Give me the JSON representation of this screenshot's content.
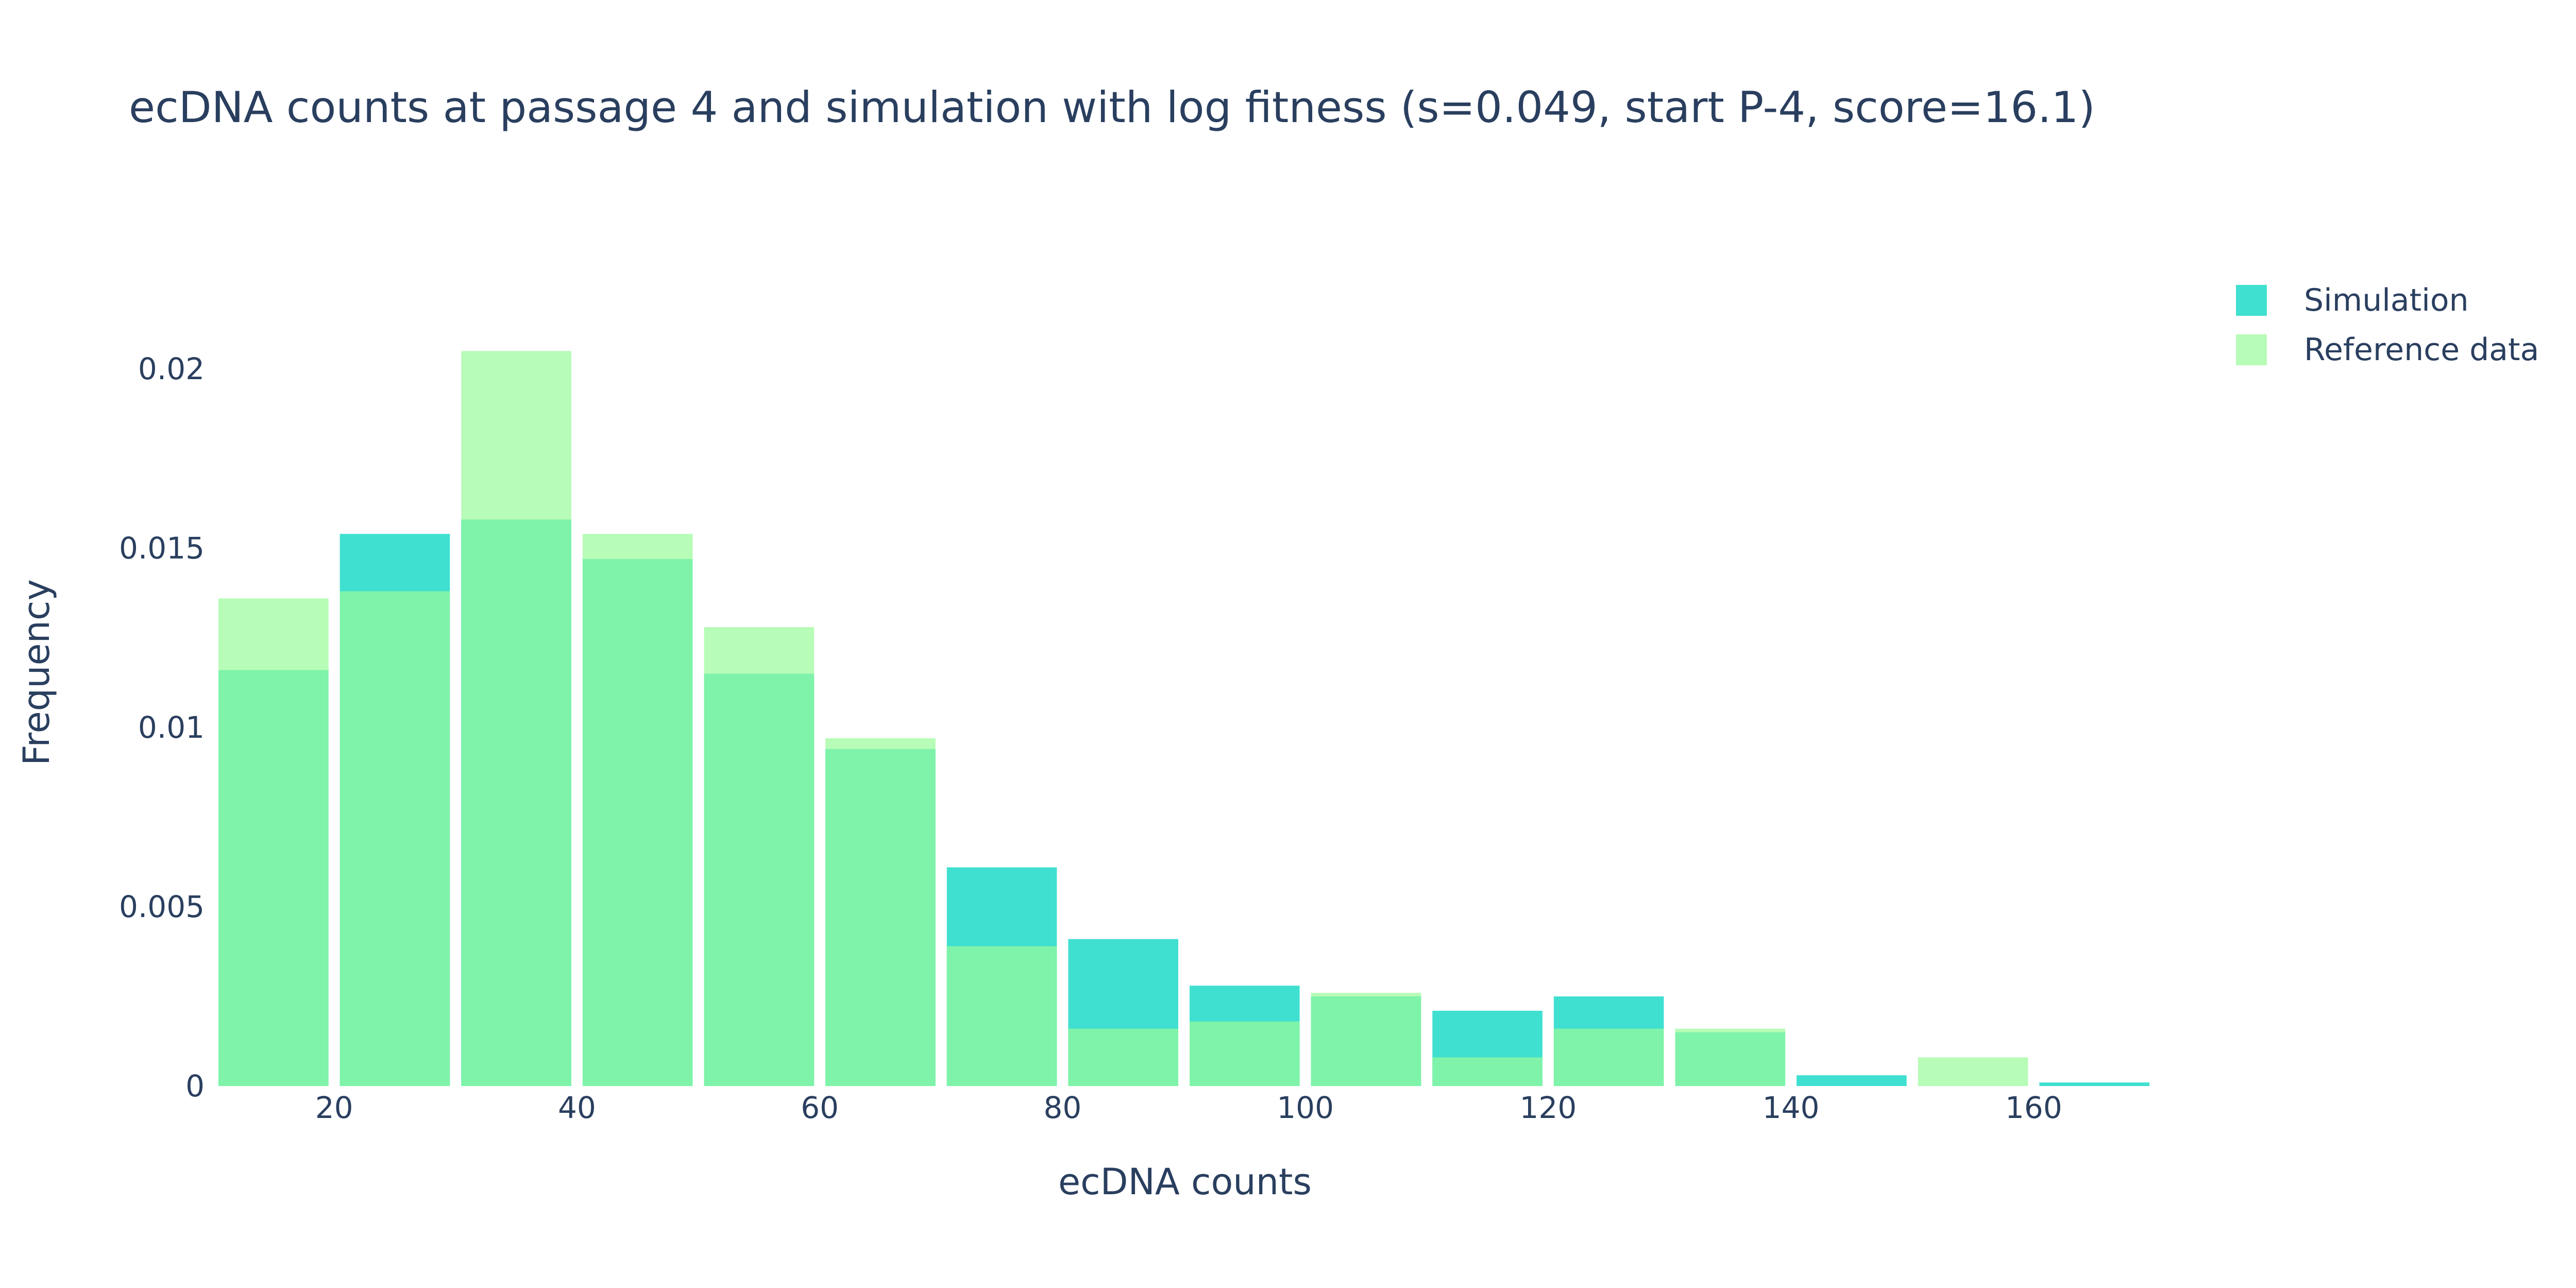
{
  "chart_data": {
    "type": "bar",
    "title": "ecDNA counts at passage 4 and simulation with log fitness (s=0.049, start P-4, score=16.1)",
    "xlabel": "ecDNA counts",
    "ylabel": "Frequency",
    "barmode": "overlay",
    "bin_width": 10,
    "bin_starts": [
      10,
      20,
      30,
      40,
      50,
      60,
      70,
      80,
      90,
      100,
      110,
      120,
      130,
      140,
      150,
      160
    ],
    "xlim": [
      10,
      170
    ],
    "ylim": [
      0,
      0.0221
    ],
    "x_ticks": [
      20,
      40,
      60,
      80,
      100,
      120,
      140,
      160
    ],
    "y_ticks": [
      0,
      0.005,
      0.01,
      0.015,
      0.02
    ],
    "y_tick_labels": [
      "0",
      "0.005",
      "0.01",
      "0.015",
      "0.02"
    ],
    "grid": false,
    "legend_position": "top-right",
    "series": [
      {
        "name": "Simulation",
        "color": "#40e0d0",
        "values": [
          0.0116,
          0.0154,
          0.0158,
          0.0147,
          0.0115,
          0.0094,
          0.0061,
          0.0041,
          0.0028,
          0.0025,
          0.0021,
          0.0025,
          0.0015,
          0.0003,
          0.0,
          0.0001
        ]
      },
      {
        "name": "Reference data",
        "color": "#98fb98",
        "opacity": 0.7,
        "values": [
          0.0136,
          0.0138,
          0.0205,
          0.0154,
          0.0128,
          0.0097,
          0.0039,
          0.0016,
          0.0018,
          0.0026,
          0.0008,
          0.0016,
          0.0016,
          0.0,
          0.0008,
          0.0
        ]
      }
    ]
  }
}
